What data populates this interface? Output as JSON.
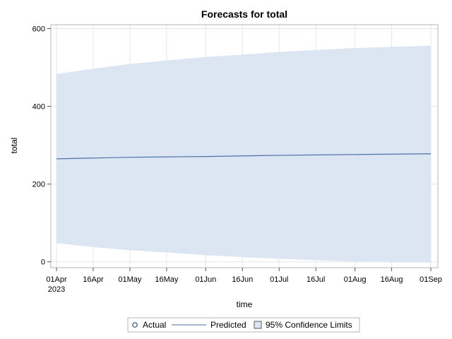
{
  "chart_data": {
    "type": "line",
    "title": "Forecasts for total",
    "xlabel": "time",
    "ylabel": "total",
    "x_tick_labels": [
      "01Apr",
      "16Apr",
      "01May",
      "16May",
      "01Jun",
      "16Jun",
      "01Jul",
      "16Jul",
      "01Aug",
      "16Aug",
      "01Sep"
    ],
    "x_tick_year": "2023",
    "x_range": [
      "2023-04-01",
      "2023-09-01"
    ],
    "y_ticks": [
      0,
      200,
      400,
      600
    ],
    "ylim": [
      -15,
      610
    ],
    "grid": true,
    "legend_position": "bottom",
    "legend": [
      "Actual",
      "Predicted",
      "95% Confidence Limits"
    ],
    "series": [
      {
        "name": "Predicted",
        "color": "#4d6fa6",
        "points": [
          {
            "x": "2023-04-01",
            "y": 265
          },
          {
            "x": "2023-04-16",
            "y": 267
          },
          {
            "x": "2023-05-01",
            "y": 269
          },
          {
            "x": "2023-05-16",
            "y": 270
          },
          {
            "x": "2023-06-01",
            "y": 271
          },
          {
            "x": "2023-06-16",
            "y": 272.5
          },
          {
            "x": "2023-07-01",
            "y": 274
          },
          {
            "x": "2023-07-16",
            "y": 275
          },
          {
            "x": "2023-08-01",
            "y": 276
          },
          {
            "x": "2023-08-16",
            "y": 277
          },
          {
            "x": "2023-09-01",
            "y": 278
          }
        ]
      },
      {
        "name": "95% Confidence Limits",
        "color": "#dce6f2",
        "points": [
          {
            "x": "2023-04-01",
            "lower": 48,
            "upper": 483
          },
          {
            "x": "2023-04-16",
            "lower": 38,
            "upper": 497
          },
          {
            "x": "2023-05-01",
            "lower": 30,
            "upper": 509
          },
          {
            "x": "2023-05-16",
            "lower": 24,
            "upper": 518
          },
          {
            "x": "2023-06-01",
            "lower": 17,
            "upper": 527
          },
          {
            "x": "2023-06-16",
            "lower": 12,
            "upper": 533
          },
          {
            "x": "2023-07-01",
            "lower": 8,
            "upper": 540
          },
          {
            "x": "2023-07-16",
            "lower": 4,
            "upper": 545
          },
          {
            "x": "2023-08-01",
            "lower": 1,
            "upper": 550
          },
          {
            "x": "2023-08-16",
            "lower": -1,
            "upper": 553
          },
          {
            "x": "2023-09-01",
            "lower": -2,
            "upper": 556
          }
        ]
      }
    ],
    "colors": {
      "band": "#dce6f2",
      "line": "#4d6fa6",
      "grid": "#e3e6ea",
      "frame": "#b4b4b4",
      "actual_marker": "#274b8a"
    }
  }
}
